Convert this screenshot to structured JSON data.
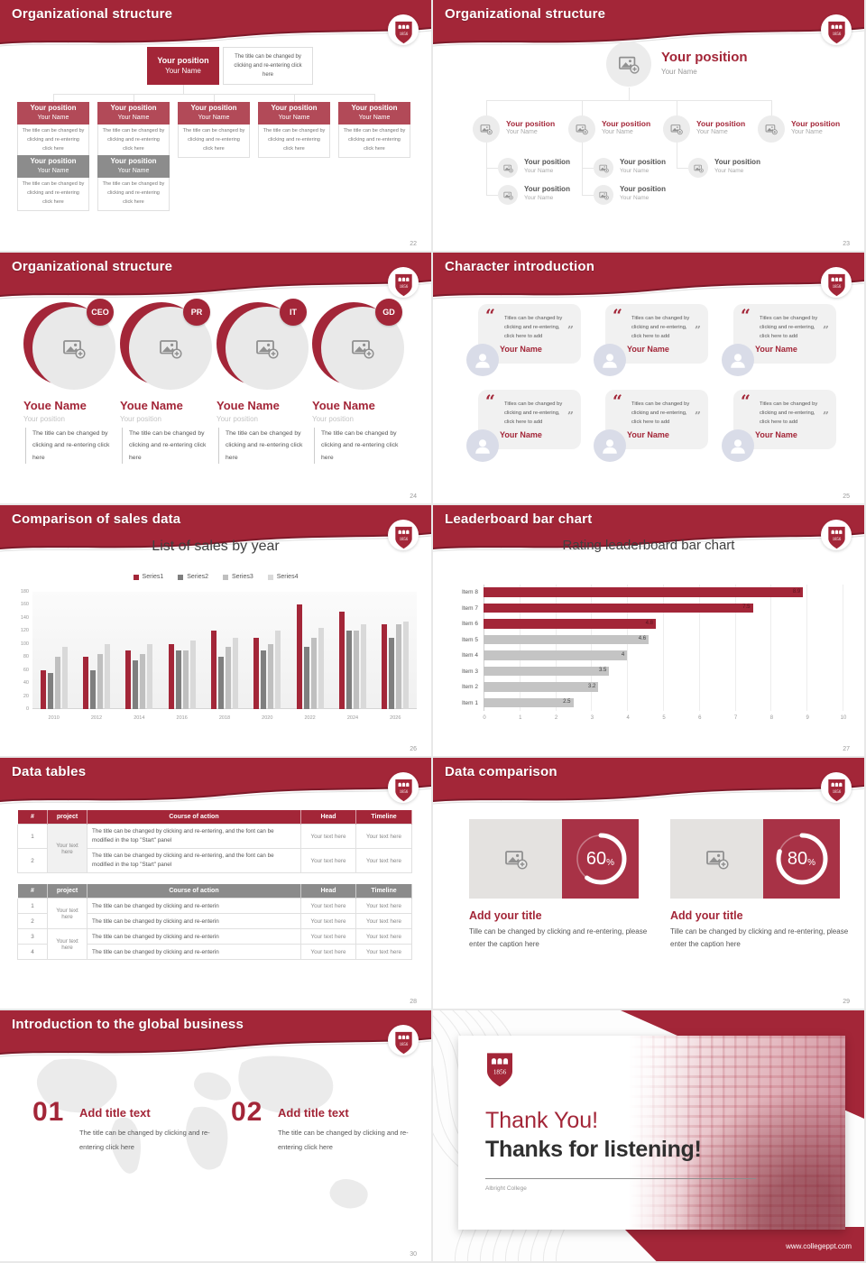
{
  "accent": "#A32638",
  "accent_dark": "#7E1A2A",
  "accent_light": "#B24A58",
  "gray_box": "#8C8C8C",
  "slides": [
    {
      "title": "Organizational structure",
      "page": "22",
      "root_position": "Your position",
      "root_name": "Your Name",
      "root_caption": "The title can be changed by clicking and re-entering click here",
      "node_caption": "The title can be changed by clicking and re-entering click here",
      "red_nodes": [
        {
          "position": "Your position",
          "name": "Your Name"
        },
        {
          "position": "Your position",
          "name": "Your Name"
        },
        {
          "position": "Your position",
          "name": "Your Name"
        },
        {
          "position": "Your position",
          "name": "Your Name"
        },
        {
          "position": "Your position",
          "name": "Your Name"
        }
      ],
      "gray_nodes": [
        {
          "position": "Your position",
          "name": "Your Name"
        },
        {
          "position": "Your position",
          "name": "Your Name"
        }
      ]
    },
    {
      "title": "Organizational structure",
      "page": "23",
      "root_position": "Your position",
      "root_name": "Your Name",
      "level2": [
        {
          "position": "Your position",
          "name": "Your Name"
        },
        {
          "position": "Your position",
          "name": "Your Name"
        },
        {
          "position": "Your position",
          "name": "Your Name"
        },
        {
          "position": "Your position",
          "name": "Your Name"
        }
      ],
      "level3": [
        {
          "position": "Your position",
          "name": "Your Name"
        },
        {
          "position": "Your position",
          "name": "Your Name"
        },
        {
          "position": "Your position",
          "name": "Your Name"
        }
      ],
      "level4": [
        {
          "position": "Your position",
          "name": "Your Name"
        },
        {
          "position": "Your position",
          "name": "Your Name"
        }
      ]
    },
    {
      "title": "Organizational structure",
      "page": "24",
      "profiles": [
        {
          "badge": "CEO",
          "name": "Youe Name",
          "role": "Your position",
          "caption": "The title can be changed by clicking and re-entering click here"
        },
        {
          "badge": "PR",
          "name": "Youe Name",
          "role": "Your position",
          "caption": "The title can be changed by clicking and re-entering click here"
        },
        {
          "badge": "IT",
          "name": "Youe Name",
          "role": "Your position",
          "caption": "The title can be changed by clicking and re-entering click here"
        },
        {
          "badge": "GD",
          "name": "Youe Name",
          "role": "Your position",
          "caption": "The title can be changed by clicking and re-entering click here"
        }
      ]
    },
    {
      "title": "Character introduction",
      "page": "25",
      "cards": [
        {
          "quote": "Titles can be changed by clicking and re-entering, click here to add",
          "name": "Your Name"
        },
        {
          "quote": "Titles can be changed by clicking and re-entering, click here to add",
          "name": "Your Name"
        },
        {
          "quote": "Titles can be changed by clicking and re-entering, click here to add",
          "name": "Your Name"
        },
        {
          "quote": "Titles can be changed by clicking and re-entering, click here to add",
          "name": "Your Name"
        },
        {
          "quote": "Titles can be changed by clicking and re-entering, click here to add",
          "name": "Your Name"
        },
        {
          "quote": "Titles can be changed by clicking and re-entering, click here to add",
          "name": "Your Name"
        }
      ]
    },
    {
      "title": "Comparison of sales data",
      "page": "26"
    },
    {
      "title": "Leaderboard bar chart",
      "page": "27"
    },
    {
      "title": "Data tables",
      "page": "28",
      "table1": {
        "headers": [
          "#",
          "project",
          "Course of action",
          "Head",
          "Timeline"
        ],
        "project_merged": "Your text here",
        "rows": [
          {
            "num": "1",
            "action": "The title can be changed by clicking and re-entering, and the font can be modified in the top \"Start\" panel",
            "head": "Your text here",
            "timeline": "Your text here"
          },
          {
            "num": "2",
            "action": "The title can be changed by clicking and re-entering, and the font can be modified in the top \"Start\" panel",
            "head": "Your text here",
            "timeline": "Your text here"
          }
        ]
      },
      "table2": {
        "headers": [
          "#",
          "project",
          "Course of action",
          "Head",
          "Timeline"
        ],
        "project_merged": [
          "Your text here",
          "Your text here"
        ],
        "rows": [
          {
            "num": "1",
            "action": "The title can be changed by clicking and re-enterin",
            "head": "Your text here",
            "timeline": "Your text here"
          },
          {
            "num": "2",
            "action": "The title can be changed by clicking and re-enterin",
            "head": "Your text here",
            "timeline": "Your text here"
          },
          {
            "num": "3",
            "action": "The title can be changed by clicking and re-enterin",
            "head": "Your text here",
            "timeline": "Your text here"
          },
          {
            "num": "4",
            "action": "The title can be changed by clicking and re-enterin",
            "head": "Your text here",
            "timeline": "Your text here"
          }
        ]
      }
    },
    {
      "title": "Data comparison",
      "page": "29",
      "panels": [
        {
          "percent": 60,
          "percent_label": "60",
          "unit": "%",
          "title": "Add your title",
          "caption": "Tille can be changed by clicking and re-entering, please enter the caption here"
        },
        {
          "percent": 80,
          "percent_label": "80",
          "unit": "%",
          "title": "Add your title",
          "caption": "Tille can be changed by clicking and re-entering, please enter the caption here"
        }
      ],
      "panel_red": "#A83246"
    },
    {
      "title": "Introduction to the global business",
      "page": "30",
      "items": [
        {
          "num": "01",
          "title": "Add title text",
          "caption": "The title can be changed by clicking and re-entering click here"
        },
        {
          "num": "02",
          "title": "Add title text",
          "caption": "The title can be changed by clicking and re-entering click here"
        }
      ]
    },
    {
      "thank_you": "Thank You!",
      "subtitle": "Thanks for listening!",
      "org": "Albright College",
      "logo_year": "1856",
      "url": "www.collegeppt.com"
    }
  ],
  "chart_data": [
    {
      "type": "bar",
      "slide_page": "26",
      "title": "List of sales by year",
      "categories": [
        "2010",
        "2012",
        "2014",
        "2016",
        "2018",
        "2020",
        "2022",
        "2024",
        "2026"
      ],
      "series": [
        {
          "name": "Series1",
          "color": "#A32638",
          "values": [
            60,
            80,
            90,
            100,
            120,
            110,
            160,
            150,
            130
          ]
        },
        {
          "name": "Series2",
          "color": "#7F7F7F",
          "values": [
            55,
            60,
            75,
            90,
            80,
            90,
            95,
            120,
            110
          ]
        },
        {
          "name": "Series3",
          "color": "#BFBFBF",
          "values": [
            80,
            85,
            85,
            90,
            95,
            100,
            110,
            120,
            130
          ]
        },
        {
          "name": "Series4",
          "color": "#D9D9D9",
          "values": [
            95,
            100,
            100,
            105,
            110,
            120,
            125,
            130,
            135
          ]
        }
      ],
      "ylim": [
        0,
        180
      ],
      "ytick_step": 20,
      "legend_position": "top",
      "grid": false
    },
    {
      "type": "bar",
      "orientation": "horizontal",
      "slide_page": "27",
      "title": "Rating leaderboard bar chart",
      "categories": [
        "Item 8",
        "Item 7",
        "Item 6",
        "Item 5",
        "Item 4",
        "Item 3",
        "Item 2",
        "Item 1"
      ],
      "values": [
        8.9,
        7.5,
        4.8,
        4.6,
        4,
        3.5,
        3.2,
        2.5
      ],
      "value_labels": [
        "8.9",
        "7.5",
        "4.8",
        "4.6",
        "4",
        "3.5",
        "3.2",
        "2.5"
      ],
      "bar_colors": [
        "#A32638",
        "#A32638",
        "#A32638",
        "#C4C4C4",
        "#C4C4C4",
        "#C4C4C4",
        "#C4C4C4",
        "#C4C4C4"
      ],
      "xlim": [
        0,
        10
      ],
      "xtick_step": 1,
      "grid": true
    },
    {
      "type": "donut",
      "slide_page": "29",
      "values": [
        60,
        80
      ],
      "unit": "%"
    }
  ]
}
